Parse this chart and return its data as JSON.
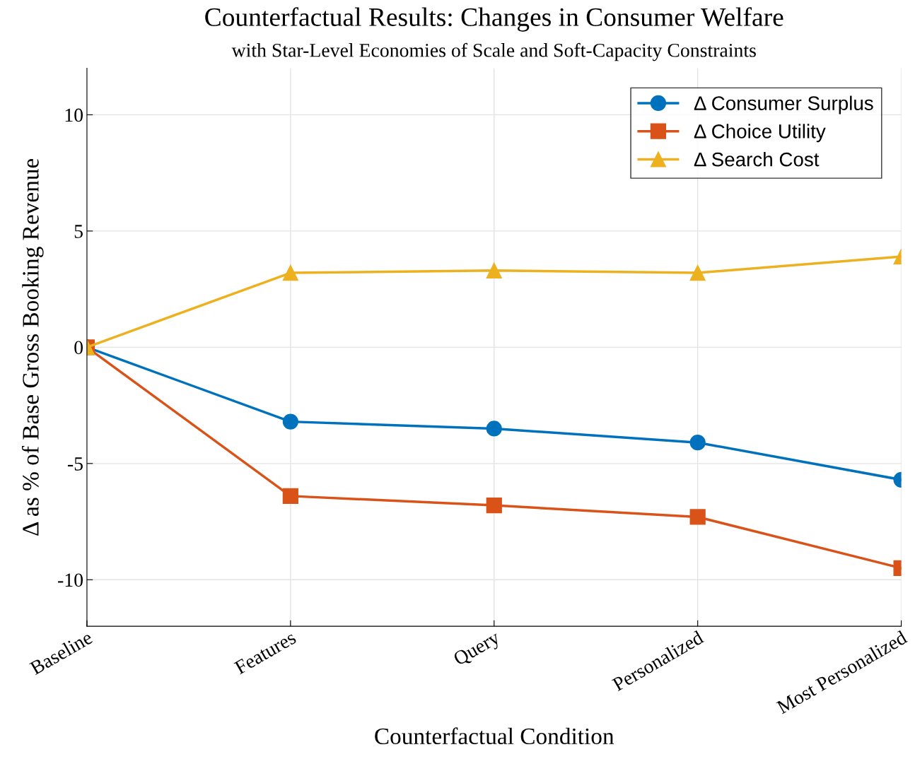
{
  "chart_data": {
    "type": "line",
    "title": "Counterfactual Results: Changes in Consumer Welfare",
    "subtitle": "with Star-Level Economies of Scale and Soft-Capacity Constraints",
    "xlabel": "Counterfactual Condition",
    "ylabel": "Δ as % of Base Gross Booking Revenue",
    "categories": [
      "Baseline",
      "Features",
      "Query",
      "Personalized",
      "Most Personalized"
    ],
    "series": [
      {
        "name": "Δ Consumer Surplus",
        "color": "#0072bd",
        "marker": "circle",
        "values": [
          0,
          -3.2,
          -3.5,
          -4.1,
          -5.7
        ]
      },
      {
        "name": "Δ Choice Utility",
        "color": "#d95319",
        "marker": "square",
        "values": [
          0,
          -6.4,
          -6.8,
          -7.3,
          -9.5
        ]
      },
      {
        "name": "Δ Search Cost",
        "color": "#edb120",
        "marker": "triangle",
        "values": [
          0,
          3.2,
          3.3,
          3.2,
          3.9
        ]
      }
    ],
    "ylim": [
      -12,
      12
    ],
    "yticks": [
      -10,
      -5,
      0,
      5,
      10
    ],
    "grid": true,
    "legend": "top right",
    "line_style": "solid"
  }
}
